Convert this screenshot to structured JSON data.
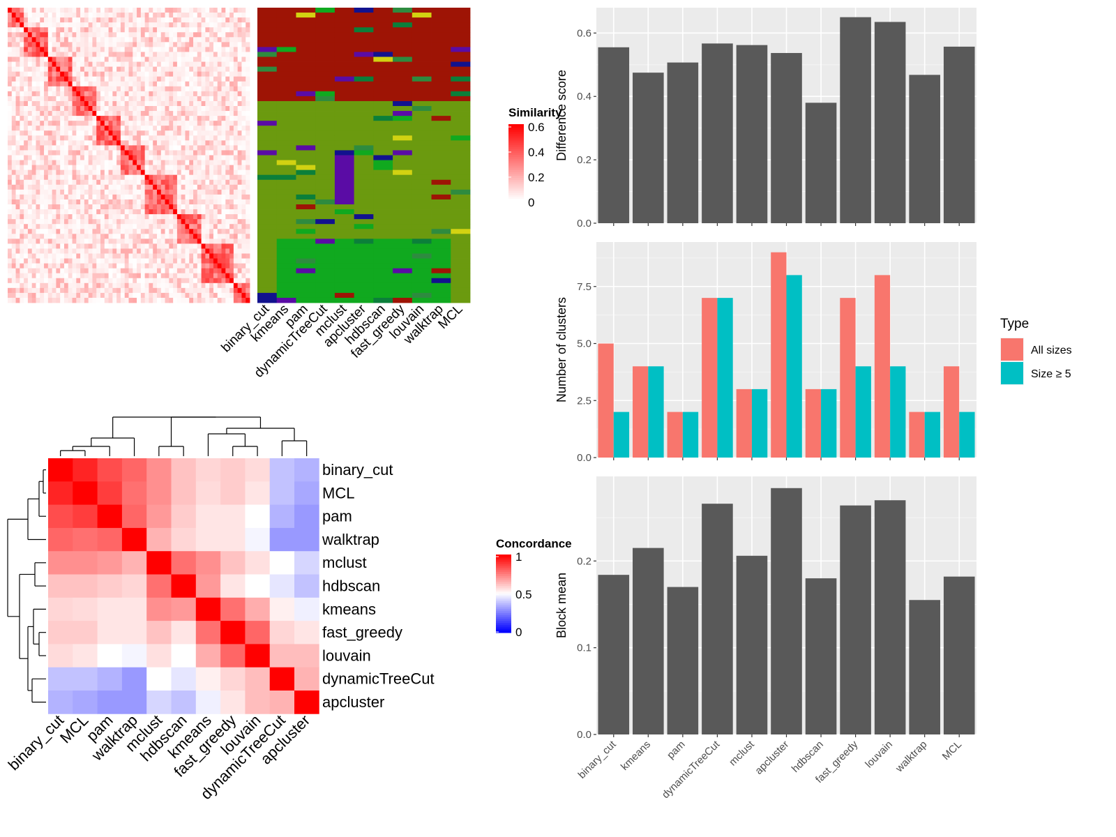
{
  "chart_data": [
    {
      "type": "heatmap",
      "subtype": "similarity-matrix",
      "rows": 60,
      "cols": 60,
      "legend": {
        "title": "Similarity",
        "ticks": [
          "0.6",
          "0.4",
          "0.2",
          "0"
        ],
        "range": [
          0,
          0.6
        ],
        "colors": [
          "#ffffff",
          "#ff0000"
        ]
      },
      "tick_labels": []
    },
    {
      "type": "heatmap",
      "subtype": "cluster-assignment",
      "columns": [
        "binary_cut",
        "kmeans",
        "pam",
        "dynamicTreeCut",
        "mclust",
        "apcluster",
        "hdbscan",
        "fast_greedy",
        "louvain",
        "walktrap",
        "MCL"
      ],
      "n_rows": 60,
      "dominant_colors": {
        "red": "#9e1405",
        "green": "#6b9a0f"
      }
    },
    {
      "type": "heatmap",
      "subtype": "concordance",
      "row_labels": [
        "binary_cut",
        "MCL",
        "pam",
        "walktrap",
        "mclust",
        "hdbscan",
        "kmeans",
        "fast_greedy",
        "louvain",
        "dynamicTreeCut",
        "apcluster"
      ],
      "col_labels": [
        "binary_cut",
        "MCL",
        "pam",
        "walktrap",
        "mclust",
        "hdbscan",
        "kmeans",
        "fast_greedy",
        "louvain",
        "dynamicTreeCut",
        "apcluster"
      ],
      "values": [
        [
          1.0,
          0.93,
          0.85,
          0.8,
          0.72,
          0.62,
          0.58,
          0.6,
          0.57,
          0.38,
          0.35
        ],
        [
          0.93,
          1.0,
          0.88,
          0.78,
          0.72,
          0.62,
          0.57,
          0.6,
          0.55,
          0.38,
          0.33
        ],
        [
          0.85,
          0.88,
          1.0,
          0.8,
          0.7,
          0.6,
          0.55,
          0.55,
          0.5,
          0.35,
          0.3
        ],
        [
          0.8,
          0.78,
          0.8,
          1.0,
          0.65,
          0.58,
          0.55,
          0.55,
          0.48,
          0.3,
          0.3
        ],
        [
          0.72,
          0.72,
          0.7,
          0.65,
          1.0,
          0.78,
          0.72,
          0.62,
          0.56,
          0.5,
          0.42
        ],
        [
          0.62,
          0.62,
          0.6,
          0.58,
          0.78,
          1.0,
          0.7,
          0.55,
          0.5,
          0.45,
          0.38
        ],
        [
          0.58,
          0.57,
          0.55,
          0.55,
          0.72,
          0.7,
          1.0,
          0.78,
          0.66,
          0.53,
          0.47
        ],
        [
          0.6,
          0.6,
          0.55,
          0.55,
          0.62,
          0.55,
          0.78,
          1.0,
          0.8,
          0.58,
          0.55
        ],
        [
          0.57,
          0.55,
          0.5,
          0.48,
          0.56,
          0.5,
          0.66,
          0.8,
          1.0,
          0.63,
          0.63
        ],
        [
          0.38,
          0.38,
          0.35,
          0.3,
          0.5,
          0.45,
          0.53,
          0.58,
          0.63,
          1.0,
          0.65
        ],
        [
          0.35,
          0.33,
          0.3,
          0.3,
          0.42,
          0.38,
          0.47,
          0.55,
          0.63,
          0.65,
          1.0
        ]
      ],
      "legend": {
        "title": "Concordance",
        "ticks": [
          "1",
          "0.5",
          "0"
        ],
        "range": [
          0,
          1
        ],
        "colors": [
          "#0000ff",
          "#ffffff",
          "#ff0000"
        ]
      }
    },
    {
      "type": "bar",
      "categories": [
        "binary_cut",
        "kmeans",
        "pam",
        "dynamicTreeCut",
        "mclust",
        "apcluster",
        "hdbscan",
        "fast_greedy",
        "louvain",
        "walktrap",
        "MCL"
      ],
      "values": [
        0.555,
        0.475,
        0.507,
        0.567,
        0.562,
        0.537,
        0.38,
        0.65,
        0.635,
        0.468,
        0.557
      ],
      "ylabel": "Difference score",
      "ylim": [
        0,
        0.68
      ],
      "yticks": [
        "0.0",
        "0.2",
        "0.4",
        "0.6"
      ],
      "bar_color": "#595959",
      "grid": true
    },
    {
      "type": "bar",
      "categories": [
        "binary_cut",
        "kmeans",
        "pam",
        "dynamicTreeCut",
        "mclust",
        "apcluster",
        "hdbscan",
        "fast_greedy",
        "louvain",
        "walktrap",
        "MCL"
      ],
      "series": [
        {
          "name": "All sizes",
          "values": [
            5,
            4,
            2,
            7,
            3,
            9,
            3,
            7,
            8,
            2,
            4
          ],
          "color": "#f8766d"
        },
        {
          "name": "Size ≥ 5",
          "values": [
            2,
            4,
            2,
            7,
            3,
            8,
            3,
            4,
            4,
            2,
            2
          ],
          "color": "#00bfc4"
        }
      ],
      "ylabel": "Number of clusters",
      "ylim": [
        0,
        9.45
      ],
      "yticks": [
        "0.0",
        "2.5",
        "5.0",
        "7.5"
      ],
      "legend": {
        "title": "Type",
        "placement": "right"
      },
      "grid": true
    },
    {
      "type": "bar",
      "categories": [
        "binary_cut",
        "kmeans",
        "pam",
        "dynamicTreeCut",
        "mclust",
        "apcluster",
        "hdbscan",
        "fast_greedy",
        "louvain",
        "walktrap",
        "MCL"
      ],
      "values": [
        0.184,
        0.215,
        0.17,
        0.266,
        0.206,
        0.284,
        0.18,
        0.264,
        0.27,
        0.155,
        0.182
      ],
      "ylabel": "Block mean",
      "ylim": [
        0,
        0.2975
      ],
      "yticks": [
        "0.0",
        "0.1",
        "0.2"
      ],
      "bar_color": "#595959",
      "grid": true
    }
  ]
}
